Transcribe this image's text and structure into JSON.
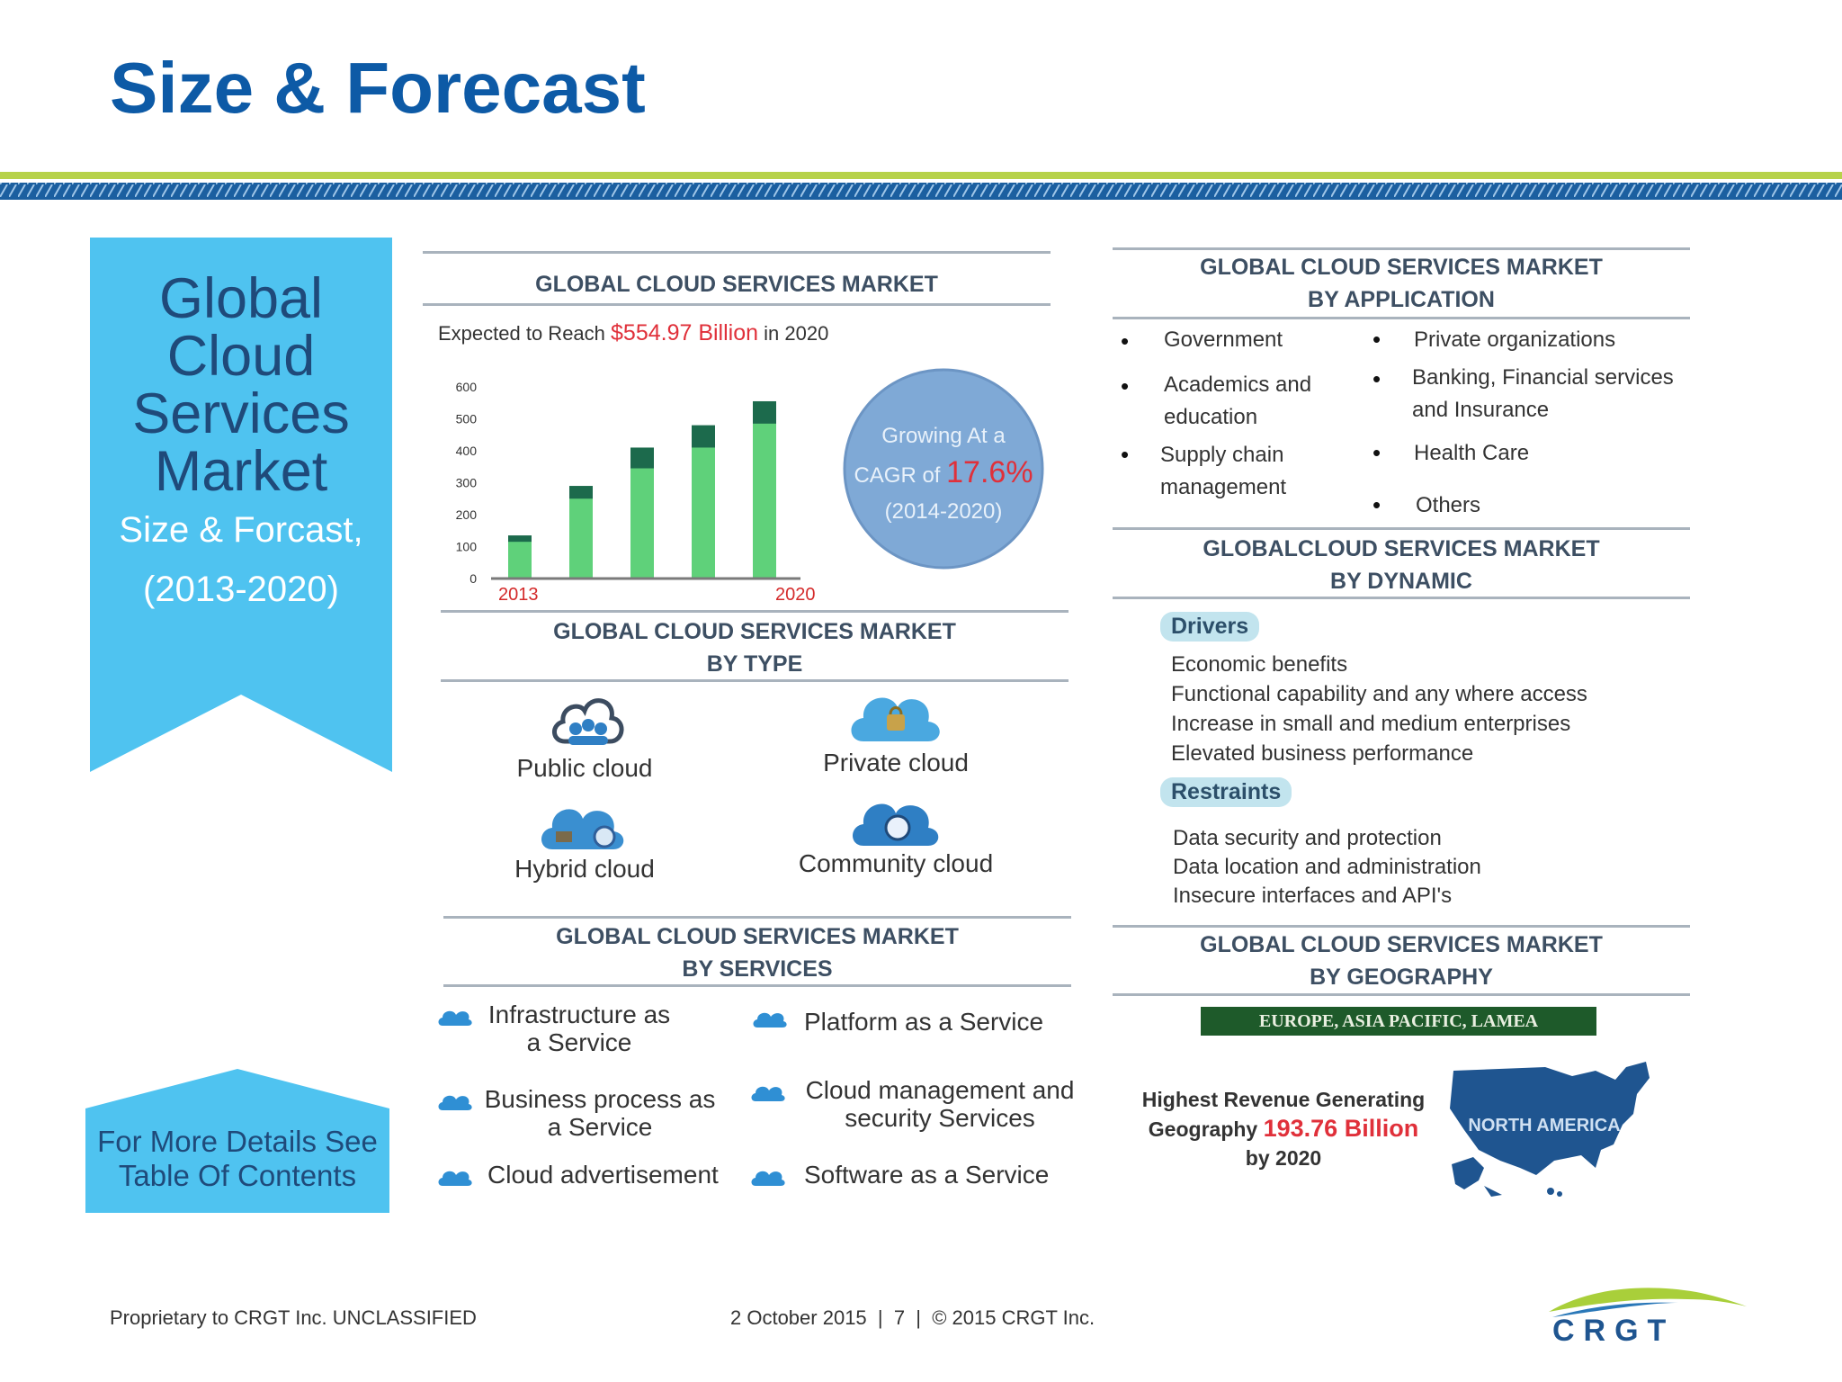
{
  "slide": {
    "title": "Size & Forecast"
  },
  "ribbon": {
    "line1": "Global",
    "line2": "Cloud",
    "line3": "Services",
    "line4": "Market",
    "sub1": "Size & Forcast,",
    "sub2": "(2013-2020)"
  },
  "more_details": {
    "line1": "For More Details See",
    "line2": "Table Of Contents"
  },
  "market": {
    "title": "GLOBAL CLOUD SERVICES MARKET",
    "expect_prefix": "Expected to Reach ",
    "expect_value": "$554.97 Billion",
    "expect_suffix": " in 2020",
    "cagr_line1": "Growing At a",
    "cagr_prefix": "CAGR of ",
    "cagr_value": "17.6%",
    "cagr_period": "(2014-2020)"
  },
  "chart_data": {
    "type": "bar",
    "categories": [
      "2013",
      "",
      "",
      "",
      "2020"
    ],
    "series": [
      {
        "values": [
          135,
          290,
          410,
          480,
          555
        ]
      },
      {
        "values": [
          115,
          250,
          345,
          410,
          485
        ]
      }
    ],
    "yticks": [
      "600",
      "500",
      "400",
      "300",
      "200",
      "100",
      "0"
    ],
    "ylim": [
      0,
      600
    ],
    "colors": {
      "light": "#5fd17a",
      "dark": "#1c6a4c"
    }
  },
  "by_type": {
    "title1": "GLOBAL CLOUD SERVICES MARKET",
    "title2": "BY TYPE",
    "items": [
      "Public cloud",
      "Private cloud",
      "Hybrid cloud",
      "Community cloud"
    ]
  },
  "by_services": {
    "title1": "GLOBAL CLOUD SERVICES MARKET",
    "title2": "BY SERVICES",
    "iaas1": "Infrastructure as",
    "iaas2": "a Service",
    "paas": "Platform as a Service",
    "bpaas1": "Business process as",
    "bpaas2": "a Service",
    "cms1": "Cloud management and",
    "cms2": "security Services",
    "ads": "Cloud advertisement",
    "saas": "Software as a Service"
  },
  "by_application": {
    "title1": "GLOBAL CLOUD SERVICES MARKET",
    "title2": "BY APPLICATION",
    "gov": "Government",
    "acad1": "Academics and",
    "acad2": "education",
    "supply1": "Supply chain",
    "supply2": "management",
    "priv": "Private organizations",
    "bank1": "Banking, Financial services",
    "bank2": "and Insurance",
    "health": "Health Care",
    "others": "Others"
  },
  "by_dynamic": {
    "title1": "GLOBALCLOUD SERVICES MARKET",
    "title2": "BY DYNAMIC",
    "drivers_label": "Drivers",
    "drivers": [
      "Economic benefits",
      "Functional capability and any where access",
      "Increase in small and medium enterprises",
      "Elevated business performance"
    ],
    "restraints_label": "Restraints",
    "restraints": [
      "Data security and protection",
      "Data location and administration",
      "Insecure interfaces and API's"
    ]
  },
  "by_geography": {
    "title1": "GLOBAL CLOUD SERVICES MARKET",
    "title2": "BY GEOGRAPHY",
    "regions": "EUROPE, ASIA PACIFIC, LAMEA",
    "hr1": "Highest Revenue Generating",
    "hr2_prefix": "Geography ",
    "hr2_value": "193.76 Billion",
    "hr3": "by 2020",
    "map_label": "NORTH AMERICA"
  },
  "footer": {
    "left": "Proprietary to CRGT Inc. UNCLASSIFIED",
    "center": "2 October 2015  |  7  |  © 2015 CRGT Inc.",
    "logo": "CRGT"
  }
}
